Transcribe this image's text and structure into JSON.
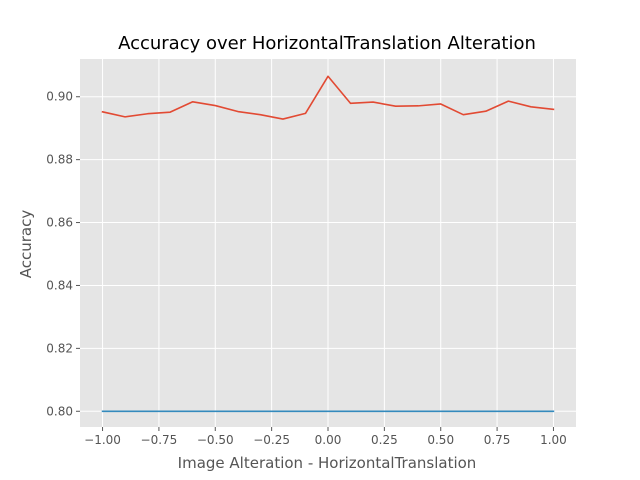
{
  "chart_data": {
    "type": "line",
    "title": "Accuracy over HorizontalTranslation Alteration",
    "xlabel": "Image Alteration - HorizontalTranslation",
    "ylabel": "Accuracy",
    "xlim": [
      -1.1,
      1.1
    ],
    "ylim": [
      0.795,
      0.912
    ],
    "grid": true,
    "x_ticks": [
      -1.0,
      -0.75,
      -0.5,
      -0.25,
      0.0,
      0.25,
      0.5,
      0.75,
      1.0
    ],
    "x_tick_labels": [
      "−1.00",
      "−0.75",
      "−0.50",
      "−0.25",
      "0.00",
      "0.25",
      "0.50",
      "0.75",
      "1.00"
    ],
    "y_ticks": [
      0.8,
      0.82,
      0.84,
      0.86,
      0.88,
      0.9
    ],
    "y_tick_labels": [
      "0.80",
      "0.82",
      "0.84",
      "0.86",
      "0.88",
      "0.90"
    ],
    "x": [
      -1.0,
      -0.9,
      -0.8,
      -0.7,
      -0.6,
      -0.5,
      -0.4,
      -0.3,
      -0.2,
      -0.1,
      0.0,
      0.1,
      0.2,
      0.3,
      0.4,
      0.5,
      0.6,
      0.7,
      0.8,
      0.9,
      1.0
    ],
    "series": [
      {
        "color": "#e24a33",
        "values": [
          0.8952,
          0.8936,
          0.8946,
          0.8951,
          0.8984,
          0.8972,
          0.8953,
          0.8943,
          0.8929,
          0.8947,
          0.9065,
          0.8979,
          0.8983,
          0.897,
          0.8971,
          0.8977,
          0.8943,
          0.8954,
          0.8986,
          0.8968,
          0.896
        ]
      },
      {
        "color": "#348abd",
        "values": [
          0.8,
          0.8,
          0.8,
          0.8,
          0.8,
          0.8,
          0.8,
          0.8,
          0.8,
          0.8,
          0.8,
          0.8,
          0.8,
          0.8,
          0.8,
          0.8,
          0.8,
          0.8,
          0.8,
          0.8,
          0.8
        ]
      }
    ],
    "colors": {
      "background": "#e5e5e5",
      "grid": "#ffffff",
      "tick": "#555555"
    }
  }
}
